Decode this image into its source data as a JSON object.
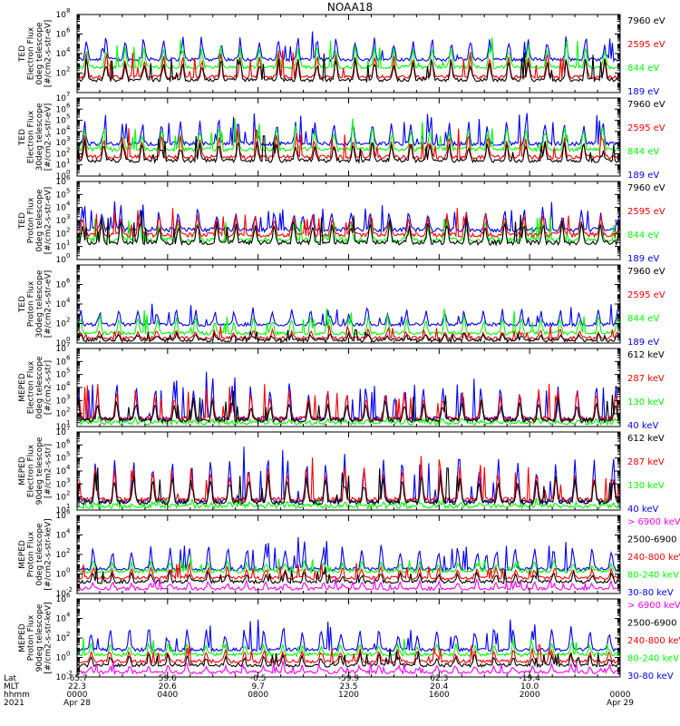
{
  "title": "NOAA18",
  "colors": {
    "black": "#000000",
    "blue": "#0000ff",
    "red": "#ff0000",
    "green": "#00ff00",
    "magenta": "#ff00ff"
  },
  "chart_data": [
    {
      "type": "line",
      "ylabel": [
        "TED",
        "Electron Flux",
        "0deg telescope",
        "[#/cm2-s-str-eV]"
      ],
      "log_y": true,
      "yticks": [
        {
          "label": "10",
          "exp": "2"
        },
        {
          "label": "10",
          "exp": "4"
        },
        {
          "label": "10",
          "exp": "6"
        },
        {
          "label": "10",
          "exp": "8"
        }
      ],
      "ylim": [
        0,
        8
      ],
      "series": [
        {
          "name": "7960 eV",
          "color": "black",
          "base": 1.3,
          "peak": 3.6
        },
        {
          "name": "2595 eV",
          "color": "red",
          "base": 1.6,
          "peak": 4.1
        },
        {
          "name": "844 eV",
          "color": "green",
          "base": 2.6,
          "peak": 5.0
        },
        {
          "name": "189 eV",
          "color": "blue",
          "base": 3.4,
          "peak": 5.9
        }
      ]
    },
    {
      "type": "line",
      "ylabel": [
        "TED",
        "Electron Flux",
        "30deg telescope",
        "[#/cm2-s-str-eV]"
      ],
      "log_y": true,
      "yticks": [
        {
          "label": "10",
          "exp": "0"
        },
        {
          "label": "10",
          "exp": "1"
        },
        {
          "label": "10",
          "exp": "2"
        },
        {
          "label": "10",
          "exp": "3"
        },
        {
          "label": "10",
          "exp": "4"
        },
        {
          "label": "10",
          "exp": "5"
        },
        {
          "label": "10",
          "exp": "6"
        },
        {
          "label": "10",
          "exp": "7"
        }
      ],
      "ylim": [
        0,
        7
      ],
      "series": [
        {
          "name": "7960 eV",
          "color": "black",
          "base": 1.4,
          "peak": 3.2
        },
        {
          "name": "2595 eV",
          "color": "red",
          "base": 1.7,
          "peak": 3.8
        },
        {
          "name": "844 eV",
          "color": "green",
          "base": 2.4,
          "peak": 4.6
        },
        {
          "name": "189 eV",
          "color": "blue",
          "base": 2.9,
          "peak": 5.1
        }
      ]
    },
    {
      "type": "line",
      "ylabel": [
        "TED",
        "Proton Flux",
        "0deg telescope",
        "[#/cm2-s-str-eV]"
      ],
      "log_y": true,
      "yticks": [
        {
          "label": "10",
          "exp": "0"
        },
        {
          "label": "10",
          "exp": "1"
        },
        {
          "label": "10",
          "exp": "2"
        },
        {
          "label": "10",
          "exp": "3"
        },
        {
          "label": "10",
          "exp": "4"
        },
        {
          "label": "10",
          "exp": "5"
        },
        {
          "label": "10",
          "exp": "6"
        }
      ],
      "ylim": [
        0,
        6
      ],
      "series": [
        {
          "name": "7960 eV",
          "color": "black",
          "base": 1.3,
          "peak": 3.2
        },
        {
          "name": "2595 eV",
          "color": "red",
          "base": 1.9,
          "peak": 3.6
        },
        {
          "name": "844 eV",
          "color": "green",
          "base": 1.5,
          "peak": 3.0
        },
        {
          "name": "189 eV",
          "color": "blue",
          "base": 2.3,
          "peak": 4.0
        }
      ]
    },
    {
      "type": "line",
      "ylabel": [
        "TED",
        "Proton Flux",
        "30deg telescope",
        "[#/cm2-s-str-eV]"
      ],
      "log_y": true,
      "yticks": [
        {
          "label": "10",
          "exp": "0"
        },
        {
          "label": "10",
          "exp": "2"
        },
        {
          "label": "10",
          "exp": "4"
        },
        {
          "label": "10",
          "exp": "6"
        }
      ],
      "ylim": [
        0,
        8
      ],
      "series": [
        {
          "name": "7960 eV",
          "color": "black",
          "base": 0.3,
          "peak": 1.0
        },
        {
          "name": "2595 eV",
          "color": "red",
          "base": 0.5,
          "peak": 1.4
        },
        {
          "name": "844 eV",
          "color": "green",
          "base": 1.0,
          "peak": 3.0
        },
        {
          "name": "189 eV",
          "color": "blue",
          "base": 1.9,
          "peak": 3.6
        }
      ]
    },
    {
      "type": "line",
      "ylabel": [
        "MEPED",
        "Electron Flux",
        "0deg telescope",
        "[#/cm2-s-str]"
      ],
      "log_y": true,
      "yticks": [
        {
          "label": "10",
          "exp": "1"
        },
        {
          "label": "10",
          "exp": "2"
        },
        {
          "label": "10",
          "exp": "3"
        },
        {
          "label": "10",
          "exp": "4"
        },
        {
          "label": "10",
          "exp": "5"
        },
        {
          "label": "10",
          "exp": "6"
        },
        {
          "label": "10",
          "exp": "7"
        }
      ],
      "ylim": [
        1,
        7
      ],
      "series": [
        {
          "name": "612 keV",
          "color": "black",
          "base": 1.5,
          "peak": 3.2
        },
        {
          "name": "287 keV",
          "color": "red",
          "base": 1.6,
          "peak": 3.9
        },
        {
          "name": "130 keV",
          "color": "green",
          "base": 1.3,
          "peak": 1.5
        },
        {
          "name": "40 keV",
          "color": "blue",
          "base": 1.6,
          "peak": 4.6
        }
      ]
    },
    {
      "type": "line",
      "ylabel": [
        "MEPED",
        "Electron Flux",
        "90deg telescope",
        "[#/cm2-s-str]"
      ],
      "log_y": true,
      "yticks": [
        {
          "label": "10",
          "exp": "1"
        },
        {
          "label": "10",
          "exp": "2"
        },
        {
          "label": "10",
          "exp": "3"
        },
        {
          "label": "10",
          "exp": "4"
        },
        {
          "label": "10",
          "exp": "5"
        },
        {
          "label": "10",
          "exp": "6"
        },
        {
          "label": "10",
          "exp": "7"
        }
      ],
      "ylim": [
        1,
        7
      ],
      "series": [
        {
          "name": "612 keV",
          "color": "black",
          "base": 1.6,
          "peak": 3.8
        },
        {
          "name": "287 keV",
          "color": "red",
          "base": 1.8,
          "peak": 4.5
        },
        {
          "name": "130 keV",
          "color": "green",
          "base": 1.3,
          "peak": 1.6
        },
        {
          "name": "40 keV",
          "color": "blue",
          "base": 1.7,
          "peak": 5.3
        }
      ]
    },
    {
      "type": "line",
      "ylabel": [
        "MEPED",
        "Proton Flux",
        "0deg telescope",
        "[#/cm2-s-str-keV]"
      ],
      "log_y": true,
      "yticks": [
        {
          "label": "10",
          "exp": "-2"
        },
        {
          "label": "10",
          "exp": "0"
        },
        {
          "label": "10",
          "exp": "2"
        },
        {
          "label": "10",
          "exp": "4"
        },
        {
          "label": "10",
          "exp": "6"
        }
      ],
      "ylim": [
        -2,
        6
      ],
      "series": [
        {
          "name": "> 6900 keV",
          "color": "magenta",
          "base": -1.5,
          "peak": -0.7
        },
        {
          "name": "2500-6900",
          "color": "black",
          "base": -0.8,
          "peak": 0.3
        },
        {
          "name": "240-800 keV",
          "color": "red",
          "base": -0.4,
          "peak": 0.8
        },
        {
          "name": "80-240 keV",
          "color": "green",
          "base": 0.3,
          "peak": 1.4
        },
        {
          "name": "30-80 keV",
          "color": "blue",
          "base": 0.5,
          "peak": 3.2
        }
      ]
    },
    {
      "type": "line",
      "ylabel": [
        "MEPED",
        "Proton Flux",
        "90deg telescope",
        "[#/cm2-s-str-keV]"
      ],
      "log_y": true,
      "yticks": [
        {
          "label": "10",
          "exp": "-2"
        },
        {
          "label": "10",
          "exp": "0"
        },
        {
          "label": "10",
          "exp": "2"
        },
        {
          "label": "10",
          "exp": "4"
        },
        {
          "label": "10",
          "exp": "6"
        }
      ],
      "ylim": [
        -2,
        6
      ],
      "series": [
        {
          "name": "> 6900 keV",
          "color": "magenta",
          "base": -1.5,
          "peak": -0.7
        },
        {
          "name": "2500-6900",
          "color": "black",
          "base": -0.8,
          "peak": 0.4
        },
        {
          "name": "240-800 keV",
          "color": "red",
          "base": -0.4,
          "peak": 0.9
        },
        {
          "name": "80-240 keV",
          "color": "green",
          "base": 0.3,
          "peak": 1.5
        },
        {
          "name": "30-80 keV",
          "color": "blue",
          "base": 0.8,
          "peak": 3.3
        }
      ]
    }
  ],
  "x_axis": {
    "row_labels": [
      "Lat",
      "MLT",
      "hhmm",
      "2021"
    ],
    "ticks": [
      {
        "lat": "-65.7",
        "mlt": "22.3",
        "hhmm": "0000",
        "date": "Apr 28"
      },
      {
        "lat": "59.6",
        "mlt": "20.6",
        "hhmm": "0400",
        "date": ""
      },
      {
        "lat": "-0.5",
        "mlt": "9.7",
        "hhmm": "0800",
        "date": ""
      },
      {
        "lat": "-59.9",
        "mlt": "23.5",
        "hhmm": "1200",
        "date": ""
      },
      {
        "lat": "62.3",
        "mlt": "20.4",
        "hhmm": "1600",
        "date": ""
      },
      {
        "lat": "-19.4",
        "mlt": "10.0",
        "hhmm": "2000",
        "date": ""
      },
      {
        "lat": "",
        "mlt": "",
        "hhmm": "0000",
        "date": "Apr 29"
      }
    ]
  }
}
